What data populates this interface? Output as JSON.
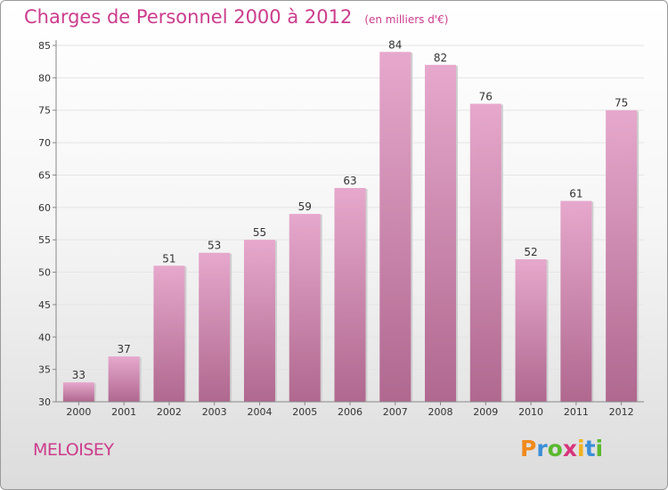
{
  "title": "Charges de Personnel 2000 à 2012",
  "subtitle": "(en milliers d'€)",
  "place": "MELOISEY",
  "logo": {
    "text": "Proxiti",
    "letter_colors": [
      "#f08a1c",
      "#3a8fd8",
      "#5ab82e",
      "#d8337c",
      "#f0b21c",
      "#3a8fd8",
      "#5ab82e"
    ]
  },
  "chart_data": {
    "type": "bar",
    "title": "Charges de Personnel 2000 à 2012",
    "subtitle": "(en milliers d'€)",
    "categories": [
      "2000",
      "2001",
      "2002",
      "2003",
      "2004",
      "2005",
      "2006",
      "2007",
      "2008",
      "2009",
      "2010",
      "2011",
      "2012"
    ],
    "values": [
      33,
      37,
      51,
      53,
      55,
      59,
      63,
      84,
      82,
      76,
      52,
      61,
      75
    ],
    "ylim": [
      30,
      85
    ],
    "yticks": [
      30,
      35,
      40,
      45,
      50,
      55,
      60,
      65,
      70,
      75,
      80,
      85
    ],
    "grid": true,
    "bar_color_top": "#e6a8cc",
    "bar_color_bottom": "#b0688f"
  }
}
